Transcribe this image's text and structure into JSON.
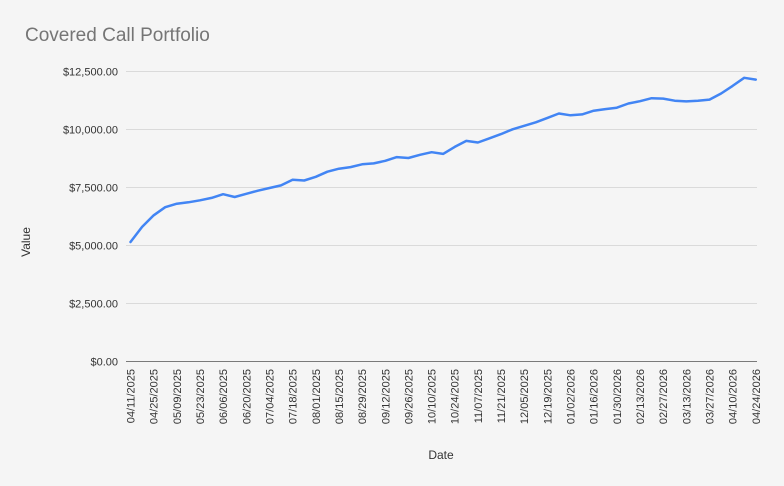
{
  "page": {
    "background": "#f5f5f5"
  },
  "chart_data": {
    "type": "line",
    "title": "Covered Call Portfolio",
    "xlabel": "Date",
    "ylabel": "Value",
    "legend": "none",
    "grid": "horizontal",
    "ylim": [
      0,
      12500
    ],
    "y_ticks": [
      0,
      2500,
      5000,
      7500,
      10000,
      12500
    ],
    "y_tick_labels": [
      "$0.00",
      "$2,500.00",
      "$5,000.00",
      "$7,500.00",
      "$10,000.00",
      "$12,500.00"
    ],
    "x_tick_labels": [
      "04/11/2025",
      "04/25/2025",
      "05/09/2025",
      "05/23/2025",
      "06/06/2025",
      "06/20/2025",
      "07/04/2025",
      "07/18/2025",
      "08/01/2025",
      "08/15/2025",
      "08/29/2025",
      "09/12/2025",
      "09/26/2025",
      "10/10/2025",
      "10/24/2025",
      "11/07/2025",
      "11/21/2025",
      "12/05/2025",
      "12/19/2025",
      "01/02/2026",
      "01/16/2026",
      "01/30/2026",
      "02/13/2026",
      "02/27/2026",
      "03/13/2026",
      "03/27/2026",
      "04/10/2026",
      "04/24/2026"
    ],
    "x_points_per_tick_interval": 2,
    "series": [
      {
        "name": "Value",
        "frequency": "weekly",
        "values": [
          5150,
          5800,
          6300,
          6650,
          6800,
          6860,
          6950,
          7050,
          7210,
          7090,
          7230,
          7360,
          7480,
          7590,
          7830,
          7800,
          7960,
          8180,
          8310,
          8380,
          8500,
          8540,
          8650,
          8810,
          8770,
          8910,
          9020,
          8950,
          9250,
          9510,
          9440,
          9620,
          9800,
          10010,
          10160,
          10310,
          10500,
          10690,
          10610,
          10650,
          10810,
          10880,
          10940,
          11120,
          11220,
          11350,
          11330,
          11240,
          11210,
          11240,
          11290,
          11550,
          11880,
          12230,
          12150
        ]
      }
    ],
    "colors": {
      "line": "#4285f4",
      "grid": "#dadada",
      "axis_line": "#7a7a7a",
      "axis_text": "#333333",
      "title_text": "#757575"
    }
  }
}
